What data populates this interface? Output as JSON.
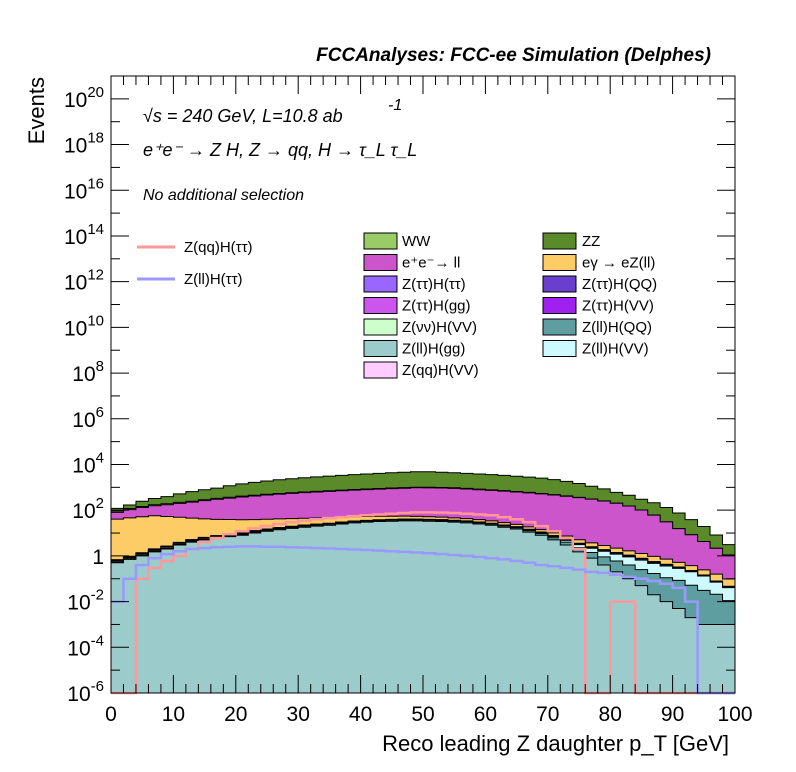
{
  "chart_data": {
    "type": "area",
    "title": "FCCAnalyses: FCC-ee Simulation (Delphes)",
    "annotations": {
      "energy_lumi": "√s = 240 GeV, L=10.8 ab",
      "energy_lumi_sup": "-1",
      "process": "e⁺e⁻ → Z H, Z → qq, H → τ_L τ_L",
      "selection": "No additional selection"
    },
    "xlabel": "Reco leading Z daughter p_T [GeV]",
    "ylabel": "Events",
    "xlim": [
      0,
      100
    ],
    "ylim": [
      1e-06,
      1e+21
    ],
    "yscale": "log",
    "x_ticks": [
      "0",
      "10",
      "20",
      "30",
      "40",
      "50",
      "60",
      "70",
      "80",
      "90",
      "100"
    ],
    "y_ticks": [
      {
        "base": "10",
        "exp": "-6",
        "value": 1e-06
      },
      {
        "base": "10",
        "exp": "-4",
        "value": 0.0001
      },
      {
        "base": "10",
        "exp": "-2",
        "value": 0.01
      },
      {
        "base": "1",
        "exp": "",
        "value": 1
      },
      {
        "base": "10",
        "exp": "2",
        "value": 100.0
      },
      {
        "base": "10",
        "exp": "4",
        "value": 10000.0
      },
      {
        "base": "10",
        "exp": "6",
        "value": 1000000.0
      },
      {
        "base": "10",
        "exp": "8",
        "value": 100000000.0
      },
      {
        "base": "10",
        "exp": "10",
        "value": 10000000000.0
      },
      {
        "base": "10",
        "exp": "12",
        "value": 1000000000000.0
      },
      {
        "base": "10",
        "exp": "14",
        "value": 100000000000000.0
      },
      {
        "base": "10",
        "exp": "16",
        "value": 1e+16
      },
      {
        "base": "10",
        "exp": "18",
        "value": 1e+18
      },
      {
        "base": "10",
        "exp": "20",
        "value": 1e+20
      }
    ],
    "x": [
      1,
      3,
      5,
      7,
      9,
      11,
      13,
      15,
      17,
      19,
      21,
      23,
      25,
      27,
      29,
      31,
      33,
      35,
      37,
      39,
      41,
      43,
      45,
      47,
      49,
      51,
      53,
      55,
      57,
      59,
      61,
      63,
      65,
      67,
      69,
      71,
      73,
      75,
      77,
      79,
      81,
      83,
      85,
      87,
      89,
      91,
      93,
      95,
      97,
      99
    ],
    "stack_series": [
      {
        "name": "Z(ll)H(ggr)",
        "label": "Z(ll)H(gg)",
        "color": "#9ccbcb",
        "values": [
          0.5,
          0.7,
          1,
          1.5,
          2,
          3,
          4,
          5,
          6,
          7,
          8,
          10,
          12,
          14,
          16,
          18,
          20,
          22,
          25,
          28,
          30,
          32,
          33,
          34,
          34,
          33,
          32,
          30,
          28,
          25,
          22,
          18,
          15,
          11,
          8,
          5,
          3,
          1.5,
          0.8,
          0.4,
          0.2,
          0.1,
          0.05,
          0.02,
          0.01,
          0.005,
          0.002,
          0.001,
          0.001,
          0.001
        ]
      },
      {
        "name": "Z(ll)H(QQ)",
        "label": "Z(ll)H(QQ)",
        "color": "#5f9ea0",
        "values": [
          0.02,
          0.03,
          0.05,
          0.08,
          0.1,
          0.15,
          0.2,
          0.3,
          0.4,
          0.5,
          0.6,
          0.8,
          1,
          1.2,
          1.5,
          1.8,
          2,
          2.2,
          2.5,
          2.8,
          3,
          3.2,
          3.4,
          3.5,
          3.5,
          3.5,
          3.4,
          3.2,
          3,
          2.8,
          2.5,
          2.2,
          2,
          1.8,
          1.5,
          1.2,
          1,
          0.8,
          0.6,
          0.5,
          0.4,
          0.3,
          0.2,
          0.15,
          0.1,
          0.08,
          0.05,
          0.03,
          0.02,
          0.01
        ]
      },
      {
        "name": "Z(ll)H(VV)",
        "label": "Z(ll)H(VV)",
        "color": "#ccfaff",
        "values": [
          0.01,
          0.01,
          0.02,
          0.03,
          0.04,
          0.05,
          0.06,
          0.07,
          0.08,
          0.09,
          0.1,
          0.12,
          0.14,
          0.16,
          0.18,
          0.2,
          0.22,
          0.25,
          0.28,
          0.3,
          0.32,
          0.35,
          0.38,
          0.4,
          0.42,
          0.45,
          0.48,
          0.5,
          0.52,
          0.55,
          0.58,
          0.6,
          0.62,
          0.65,
          0.7,
          0.75,
          0.8,
          0.8,
          0.75,
          0.7,
          0.6,
          0.5,
          0.4,
          0.3,
          0.25,
          0.2,
          0.15,
          0.1,
          0.05,
          0.03
        ]
      },
      {
        "name": "Z(nunu)H(VV)",
        "label": "Z(νν)H(VV)",
        "color": "#ccffcc",
        "values": [
          0.05,
          0.08,
          0.12,
          0.18,
          0.25,
          0.35,
          0.45,
          0.55,
          0.65,
          0.75,
          0.85,
          0.95,
          1,
          1.1,
          1.1,
          1.2,
          1.2,
          1.2,
          1.2,
          1.2,
          1.1,
          1.1,
          1,
          1,
          0.9,
          0.9,
          0.8,
          0.7,
          0.6,
          0.5,
          0.4,
          0.3,
          0.2,
          0.15,
          0.1,
          0.06,
          0.03,
          0.01,
          0.005,
          0.002,
          0.001,
          0.001,
          0.001,
          0.001,
          0.001,
          0.001,
          0.001,
          0.001,
          0.001,
          0.001
        ]
      },
      {
        "name": "Z(tautau)H(VV)",
        "label": "Z(ττ)H(VV)",
        "color": "#a020f0",
        "values": [
          0.01,
          0.01,
          0.01,
          0.01,
          0.02,
          0.02,
          0.02,
          0.02,
          0.03,
          0.03,
          0.03,
          0.04,
          0.04,
          0.05,
          0.05,
          0.05,
          0.06,
          0.06,
          0.06,
          0.07,
          0.07,
          0.07,
          0.08,
          0.08,
          0.08,
          0.09,
          0.09,
          0.1,
          0.1,
          0.1,
          0.1,
          0.1,
          0.1,
          0.1,
          0.1,
          0.1,
          0.1,
          0.08,
          0.06,
          0.05,
          0.04,
          0.03,
          0.02,
          0.01,
          0.01,
          0.005,
          0.002,
          0.001,
          0.001,
          0.001
        ]
      },
      {
        "name": "Z(tautau)H(QQ)",
        "label": "Z(ττ)H(QQ)",
        "color": "#6a3fcf",
        "values": [
          0.05,
          0.08,
          0.1,
          0.12,
          0.15,
          0.18,
          0.2,
          0.22,
          0.25,
          0.28,
          0.3,
          0.32,
          0.35,
          0.38,
          0.4,
          0.42,
          0.45,
          0.48,
          0.5,
          0.52,
          0.55,
          0.58,
          0.6,
          0.62,
          0.65,
          0.65,
          0.65,
          0.65,
          0.65,
          0.62,
          0.6,
          0.55,
          0.5,
          0.45,
          0.4,
          0.35,
          0.3,
          0.25,
          0.2,
          0.15,
          0.12,
          0.1,
          0.08,
          0.06,
          0.04,
          0.02,
          0.01,
          0.005,
          0.002,
          0.001
        ]
      },
      {
        "name": "Z(tautau)H(gg)",
        "label": "Z(ττ)H(gg)",
        "color": "#cc55ee",
        "values": [
          0.02,
          0.02,
          0.03,
          0.03,
          0.04,
          0.04,
          0.05,
          0.05,
          0.05,
          0.06,
          0.06,
          0.06,
          0.06,
          0.06,
          0.07,
          0.07,
          0.07,
          0.07,
          0.07,
          0.07,
          0.07,
          0.07,
          0.07,
          0.07,
          0.07,
          0.07,
          0.07,
          0.07,
          0.07,
          0.06,
          0.06,
          0.06,
          0.05,
          0.05,
          0.05,
          0.04,
          0.04,
          0.03,
          0.03,
          0.03,
          0.02,
          0.02,
          0.02,
          0.01,
          0.01,
          0.01,
          0.01,
          0.005,
          0.002,
          0.001
        ]
      },
      {
        "name": "Z(tautau)H(tautau)",
        "label": "Z(ττ)H(ττ)",
        "color": "#9966ff",
        "values": [
          0.01,
          0.01,
          0.01,
          0.01,
          0.01,
          0.01,
          0.01,
          0.01,
          0.01,
          0.01,
          0.01,
          0.01,
          0.01,
          0.01,
          0.01,
          0.01,
          0.01,
          0.01,
          0.01,
          0.01,
          0.01,
          0.01,
          0.01,
          0.01,
          0.01,
          0.01,
          0.01,
          0.01,
          0.01,
          0.01,
          0.01,
          0.01,
          0.01,
          0.01,
          0.01,
          0.01,
          0.01,
          0.01,
          0.01,
          0.01,
          0.005,
          0.005,
          0.005,
          0.003,
          0.002,
          0.001,
          0.001,
          0.001,
          0.001,
          0.001
        ]
      },
      {
        "name": "Z(qq)H(VV)",
        "label": "Z(qq)H(VV)",
        "color": "#ffccff",
        "values": [
          0.01,
          0.02,
          0.04,
          0.06,
          0.08,
          0.1,
          0.15,
          0.2,
          0.25,
          0.3,
          0.35,
          0.4,
          0.45,
          0.5,
          0.55,
          0.6,
          0.65,
          0.7,
          0.75,
          0.8,
          0.85,
          0.9,
          0.95,
          1,
          1,
          1,
          1,
          1,
          0.9,
          0.8,
          0.7,
          0.6,
          0.5,
          0.4,
          0.3,
          0.2,
          0.15,
          0.1,
          0.05,
          0.02,
          0.01,
          0.005,
          0.002,
          0.001,
          0.001,
          0.001,
          0.001,
          0.001,
          0.001,
          0.001
        ]
      },
      {
        "name": "egamma_eZll",
        "label": "eγ → eZ(ll)",
        "color": "#fecc66",
        "values": [
          40,
          45,
          50,
          55,
          50,
          45,
          40,
          35,
          32,
          30,
          28,
          26,
          25,
          24,
          23,
          22,
          21,
          20,
          19,
          18,
          17,
          16,
          15,
          14,
          13,
          12,
          11,
          10,
          9,
          8,
          7,
          6,
          5,
          4,
          3,
          2.5,
          2,
          1.5,
          1.2,
          1,
          0.8,
          0.6,
          0.5,
          0.4,
          0.3,
          0.2,
          0.15,
          0.1,
          0.08,
          0.05
        ]
      },
      {
        "name": "ee_ll",
        "label": "e⁺e⁻→ ll",
        "color": "#cc55cc",
        "values": [
          40,
          60,
          80,
          100,
          120,
          150,
          180,
          220,
          260,
          300,
          340,
          380,
          420,
          460,
          500,
          540,
          580,
          620,
          660,
          700,
          740,
          780,
          820,
          860,
          900,
          900,
          880,
          850,
          800,
          750,
          700,
          650,
          600,
          550,
          500,
          450,
          400,
          350,
          300,
          250,
          200,
          150,
          100,
          60,
          30,
          15,
          8,
          4,
          2,
          1
        ]
      },
      {
        "name": "WW",
        "label": "WW",
        "color": "#99cc66",
        "values": [
          10,
          12,
          14,
          16,
          18,
          20,
          22,
          25,
          28,
          30,
          32,
          34,
          36,
          38,
          40,
          42,
          44,
          46,
          48,
          50,
          52,
          54,
          56,
          58,
          60,
          60,
          60,
          58,
          55,
          50,
          45,
          40,
          35,
          30,
          25,
          20,
          15,
          10,
          6,
          3,
          2,
          1,
          0.5,
          0.3,
          0.2,
          0.1,
          0.05,
          0.02,
          0.01,
          0.005
        ]
      },
      {
        "name": "ZZ",
        "label": "ZZ",
        "color": "#5a8a2a",
        "values": [
          30,
          50,
          100,
          150,
          200,
          300,
          400,
          500,
          600,
          800,
          1000,
          1200,
          1400,
          1600,
          1800,
          2000,
          2200,
          2400,
          2600,
          2800,
          3000,
          3200,
          3400,
          3600,
          3800,
          3800,
          3600,
          3400,
          3200,
          3000,
          2800,
          2600,
          2400,
          2200,
          2000,
          1700,
          1400,
          1100,
          800,
          600,
          400,
          300,
          200,
          150,
          100,
          60,
          30,
          15,
          6,
          2
        ]
      }
    ],
    "overlay_series": [
      {
        "name": "Z(qq)H(tautau)",
        "label": "Z(qq)H(ττ)",
        "color": "#ff9999",
        "values": [
          1e-06,
          1e-06,
          0.1,
          0.3,
          0.6,
          1,
          2,
          4,
          6,
          9,
          12,
          16,
          20,
          25,
          30,
          35,
          40,
          45,
          50,
          55,
          60,
          65,
          70,
          75,
          80,
          80,
          78,
          75,
          70,
          65,
          60,
          50,
          40,
          30,
          20,
          12,
          6,
          2,
          1e-06,
          1e-06,
          0.01,
          0.01,
          1e-06,
          1e-06,
          1e-06,
          1e-06,
          1e-06,
          1e-06,
          1e-06,
          1e-06
        ]
      },
      {
        "name": "Z(ll)H(tautau)",
        "label": "Z(ll)H(ττ)",
        "color": "#9999ff",
        "values": [
          0.01,
          0.1,
          0.4,
          0.8,
          1.2,
          1.6,
          2,
          2.2,
          2.4,
          2.5,
          2.6,
          2.6,
          2.5,
          2.5,
          2.4,
          2.3,
          2.2,
          2.1,
          2,
          1.9,
          1.8,
          1.7,
          1.6,
          1.5,
          1.4,
          1.3,
          1.2,
          1.1,
          1,
          0.9,
          0.8,
          0.7,
          0.6,
          0.5,
          0.4,
          0.35,
          0.3,
          0.25,
          0.2,
          0.18,
          0.15,
          0.12,
          0.1,
          0.08,
          0.06,
          0.04,
          0.01,
          1e-06,
          1e-06,
          1e-06
        ]
      }
    ],
    "legend_placement": "top-right, inside plot",
    "grid": false
  },
  "legend_items": {
    "overlay": [
      {
        "label": "Z(qq)H(ττ)",
        "color": "#ff9999"
      },
      {
        "label": "Z(ll)H(ττ)",
        "color": "#9999ff"
      }
    ],
    "col1": [
      {
        "label": "WW",
        "color": "#99cc66"
      },
      {
        "label": "e⁺e⁻→ ll",
        "color": "#cc55cc"
      },
      {
        "label": "Z(ττ)H(ττ)",
        "color": "#9966ff"
      },
      {
        "label": "Z(ττ)H(gg)",
        "color": "#cc55ee"
      },
      {
        "label": "Z(νν)H(VV)",
        "color": "#ccffcc"
      },
      {
        "label": "Z(ll)H(gg)",
        "color": "#9ccbcb"
      },
      {
        "label": "Z(qq)H(VV)",
        "color": "#ffccff"
      }
    ],
    "col2": [
      {
        "label": "ZZ",
        "color": "#5a8a2a"
      },
      {
        "label": "eγ → eZ(ll)",
        "color": "#fecc66"
      },
      {
        "label": "Z(ττ)H(QQ)",
        "color": "#6a3fcf"
      },
      {
        "label": "Z(ττ)H(VV)",
        "color": "#a020f0"
      },
      {
        "label": "Z(ll)H(QQ)",
        "color": "#5f9ea0"
      },
      {
        "label": "Z(ll)H(VV)",
        "color": "#ccfaff"
      }
    ]
  }
}
